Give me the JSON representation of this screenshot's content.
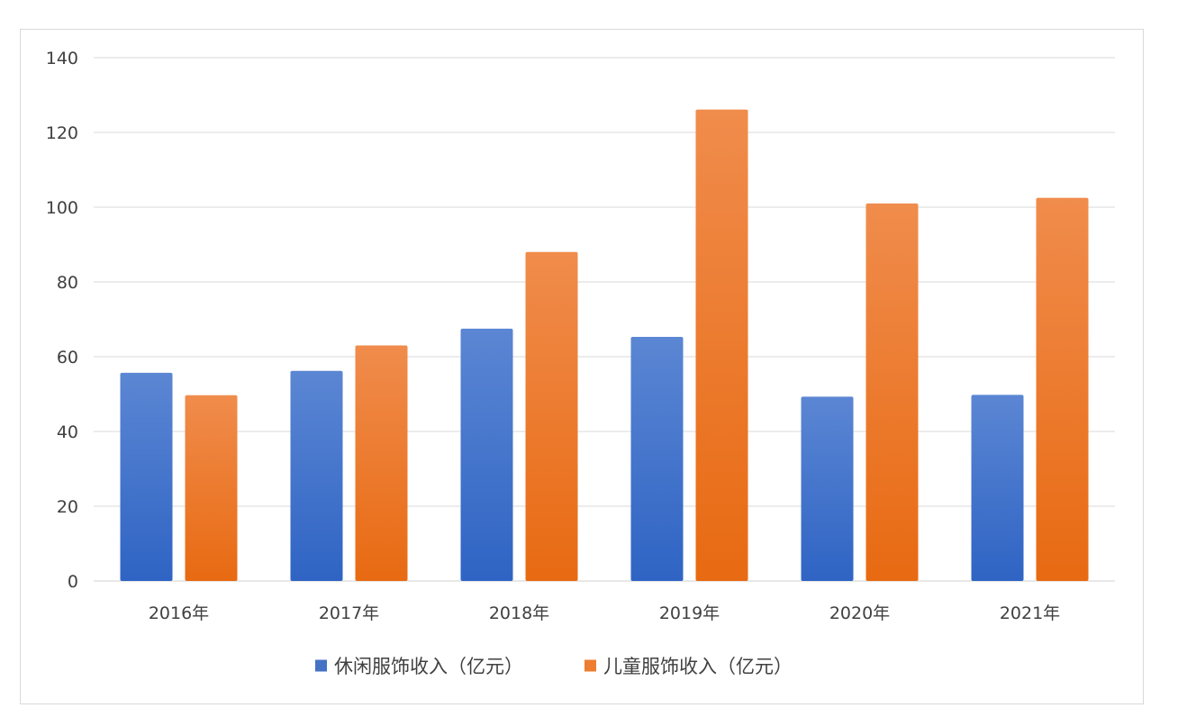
{
  "chart_data": {
    "type": "bar",
    "title": "",
    "xlabel": "",
    "ylabel": "",
    "categories": [
      "2016年",
      "2017年",
      "2018年",
      "2019年",
      "2020年",
      "2021年"
    ],
    "series": [
      {
        "name": "休闲服饰收入（亿元）",
        "color": "#4472C4",
        "values": [
          55.7,
          56.2,
          67.5,
          65.3,
          49.3,
          49.8
        ]
      },
      {
        "name": "儿童服饰收入（亿元）",
        "color": "#ED7D31",
        "values": [
          49.7,
          63.0,
          88.0,
          126.1,
          101.0,
          102.5
        ]
      }
    ],
    "ylim": [
      0,
      140
    ],
    "yticks": [
      0,
      20,
      40,
      60,
      80,
      100,
      120,
      140
    ],
    "grid": true,
    "legend": "bottom-center"
  }
}
